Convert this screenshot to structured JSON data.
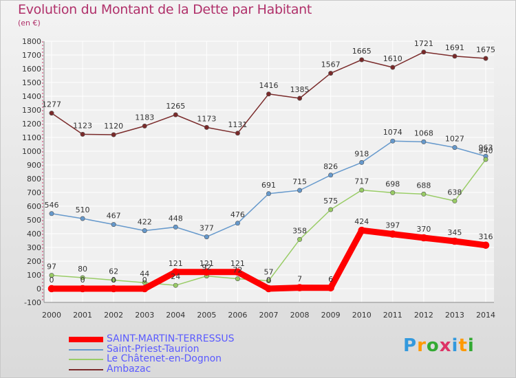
{
  "chart_data": {
    "type": "line",
    "title": "Evolution du Montant de la Dette par Habitant",
    "unit": "(en €)",
    "x": [
      "2000",
      "2001",
      "2002",
      "2003",
      "2004",
      "2005",
      "2006",
      "2007",
      "2008",
      "2009",
      "2010",
      "2011",
      "2012",
      "2013",
      "2014"
    ],
    "ylim": [
      -100,
      1800
    ],
    "yticks": [
      -100,
      0,
      100,
      200,
      300,
      400,
      500,
      600,
      700,
      800,
      900,
      1000,
      1100,
      1200,
      1300,
      1400,
      1500,
      1600,
      1700,
      1800
    ],
    "grid": true,
    "legend_position": "bottom-left",
    "series": [
      {
        "name": "SAINT-MARTIN-TERRESSUS",
        "color": "#ff0000",
        "labels": true,
        "values": [
          0,
          0,
          0,
          0,
          121,
          121,
          121,
          0,
          7,
          6,
          424,
          397,
          370,
          345,
          316
        ]
      },
      {
        "name": "Saint-Priest-Taurion",
        "color": "#6699cc",
        "labels": true,
        "values": [
          546,
          510,
          467,
          422,
          448,
          377,
          476,
          691,
          715,
          826,
          918,
          1074,
          1068,
          1027,
          963
        ]
      },
      {
        "name": "Le Châtenet-en-Dognon",
        "color": "#99cc66",
        "labels": true,
        "values": [
          97,
          80,
          62,
          44,
          24,
          92,
          72,
          57,
          358,
          575,
          717,
          698,
          688,
          638,
          940
        ]
      },
      {
        "name": "Ambazac",
        "color": "#7a2a2a",
        "labels": true,
        "values": [
          1277,
          1123,
          1120,
          1183,
          1265,
          1173,
          1131,
          1416,
          1385,
          1567,
          1665,
          1610,
          1721,
          1691,
          1675
        ]
      }
    ]
  },
  "legend": {
    "saint_martin": "SAINT-MARTIN-TERRESSUS",
    "saint_priest": "Saint-Priest-Taurion",
    "chatenet": "Le Châtenet-en-Dognon",
    "ambazac": "Ambazac"
  },
  "logo": {
    "text": "Proxiti"
  }
}
